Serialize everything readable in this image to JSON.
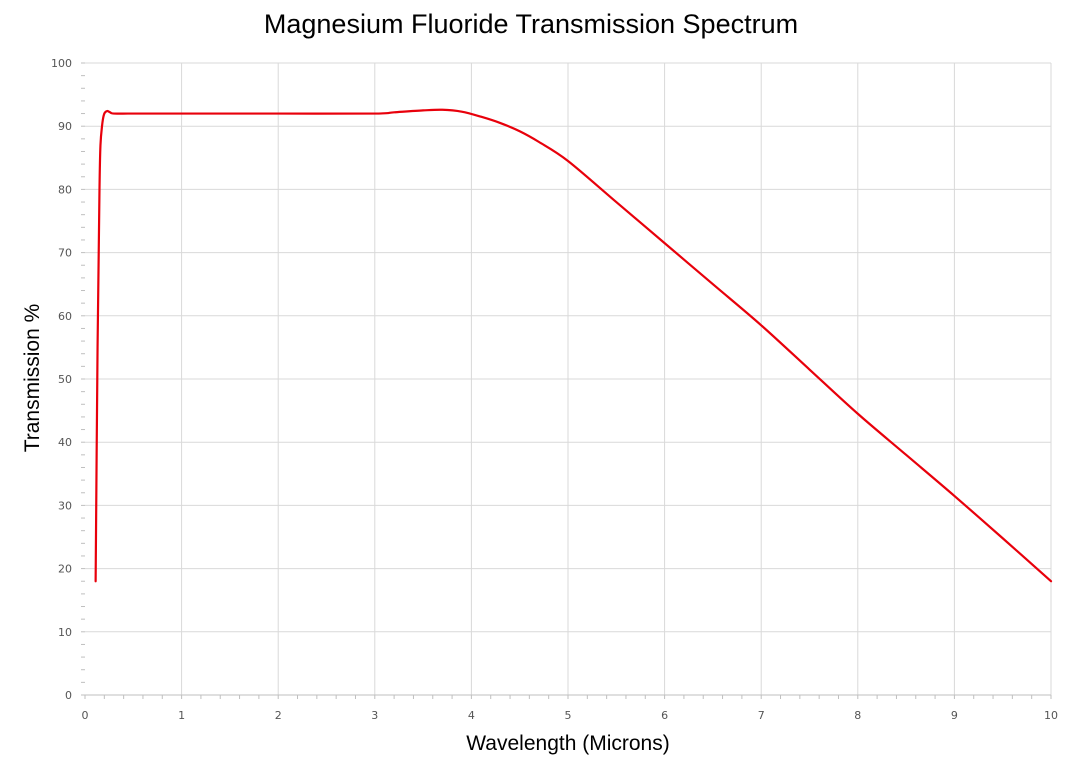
{
  "chart_data": {
    "type": "line",
    "title": "Magnesium Fluoride Transmission Spectrum",
    "xlabel": "Wavelength (Microns)",
    "ylabel": "Transmission %",
    "xlim": [
      0,
      10
    ],
    "ylim": [
      0,
      100
    ],
    "x_ticks": [
      0,
      1,
      2,
      3,
      4,
      5,
      6,
      7,
      8,
      9,
      10
    ],
    "y_ticks": [
      0,
      10,
      20,
      30,
      40,
      50,
      60,
      70,
      80,
      90,
      100
    ],
    "grid": true,
    "legend": false,
    "series": [
      {
        "color": "#e8000b",
        "x": [
          0.11,
          0.13,
          0.15,
          0.16,
          0.18,
          0.2,
          0.23,
          0.26,
          0.3,
          0.5,
          1,
          2,
          3,
          3.2,
          3.5,
          3.7,
          3.9,
          4.1,
          4.3,
          4.5,
          4.7,
          5,
          5.5,
          6,
          6.5,
          7,
          7.5,
          8,
          8.5,
          9,
          9.5,
          10
        ],
        "y": [
          18,
          55,
          80,
          87,
          90.5,
          92,
          92.4,
          92.2,
          92,
          92,
          92,
          92,
          92,
          92.2,
          92.5,
          92.6,
          92.3,
          91.5,
          90.5,
          89.2,
          87.5,
          84.5,
          78,
          71.5,
          65,
          58.5,
          51.5,
          44.5,
          38,
          31.5,
          24.8,
          18
        ]
      }
    ]
  }
}
